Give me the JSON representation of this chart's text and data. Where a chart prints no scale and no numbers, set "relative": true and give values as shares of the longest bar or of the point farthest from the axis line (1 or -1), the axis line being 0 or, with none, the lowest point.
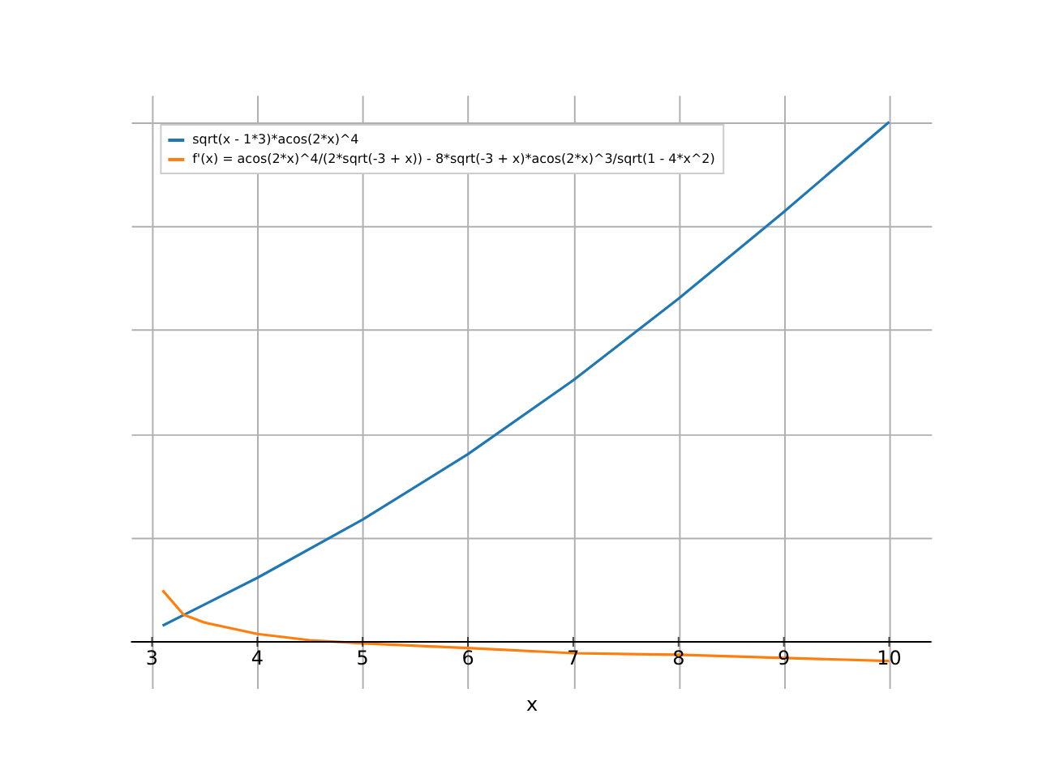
{
  "chart_data": {
    "type": "line",
    "xlabel": "x",
    "relative": true,
    "grid": true,
    "legend": "top left",
    "xlim": [
      2.8,
      10.4
    ],
    "xticks": [
      3,
      4,
      5,
      6,
      7,
      8,
      9,
      10
    ],
    "series": [
      {
        "name": "sqrt(x - 1*3)*acos(2*x)^4",
        "color": "#1f77b4",
        "x": [
          3.1,
          4,
          5,
          6,
          7,
          8,
          9,
          10
        ],
        "values": [
          0.031,
          0.123,
          0.235,
          0.361,
          0.503,
          0.66,
          0.827,
          1.0
        ]
      },
      {
        "name": "f'(x) = acos(2*x)^4/(2*sqrt(-3 + x)) - 8*sqrt(-3 + x)*acos(2*x)^3/sqrt(1 - 4*x^2)",
        "color": "#ff7f0e",
        "x": [
          3.1,
          3.3,
          3.5,
          4,
          4.5,
          5,
          6,
          7,
          8,
          9,
          10
        ],
        "values": [
          0.099,
          0.052,
          0.037,
          0.015,
          0.003,
          -0.003,
          -0.012,
          -0.022,
          -0.025,
          -0.031,
          -0.037
        ]
      }
    ]
  }
}
